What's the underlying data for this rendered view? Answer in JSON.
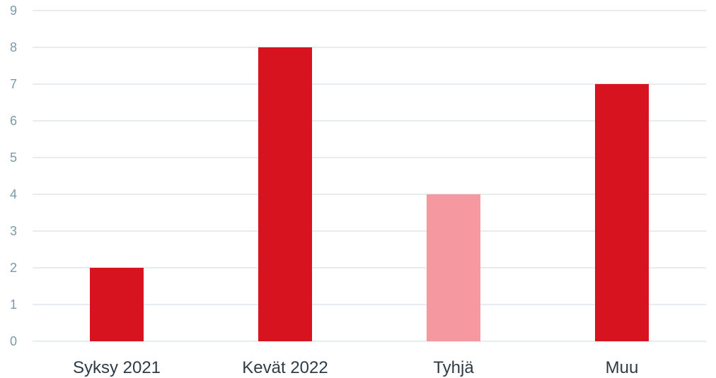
{
  "chart_data": {
    "type": "bar",
    "categories": [
      "Syksy 2021",
      "Kevät 2022",
      "Tyhjä",
      "Muu"
    ],
    "values": [
      2,
      8,
      4,
      7
    ],
    "bar_colors": [
      "#d7131f",
      "#d7131f",
      "#f5989f",
      "#d7131f"
    ],
    "ylim": [
      0,
      9
    ],
    "yticks": [
      "0",
      "1",
      "2",
      "3",
      "4",
      "5",
      "6",
      "7",
      "8",
      "9"
    ],
    "grid": true,
    "grid_color": "#dde6ea",
    "legend": "none"
  }
}
